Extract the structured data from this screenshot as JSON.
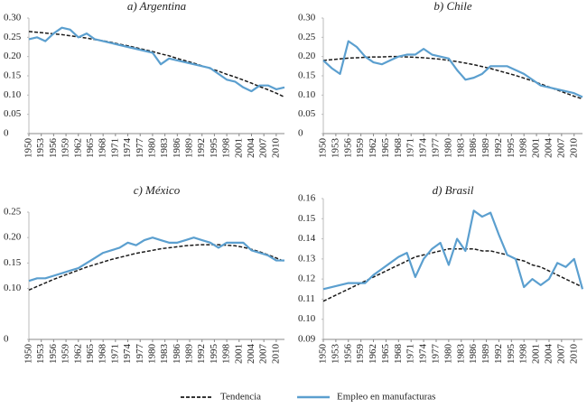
{
  "chart_data": [
    {
      "type": "line",
      "title": "a) Argentina",
      "x": [
        1950,
        1952,
        1954,
        1956,
        1958,
        1960,
        1962,
        1964,
        1966,
        1968,
        1970,
        1972,
        1974,
        1976,
        1978,
        1980,
        1982,
        1984,
        1986,
        1988,
        1990,
        1992,
        1994,
        1996,
        1998,
        2000,
        2002,
        2004,
        2006,
        2008,
        2010,
        2012
      ],
      "xlim": [
        1950,
        2012
      ],
      "xticks": [
        1950,
        1953,
        1956,
        1959,
        1962,
        1965,
        1968,
        1971,
        1974,
        1977,
        1980,
        1983,
        1986,
        1989,
        1992,
        1995,
        1998,
        2001,
        2004,
        2007,
        2010
      ],
      "ylim": [
        0,
        0.3
      ],
      "yticks": [
        0,
        0.05,
        {
          "value": 0.1,
          "label": "0.10"
        },
        0.15,
        {
          "value": 0.2,
          "label": "0.20"
        },
        0.25,
        {
          "value": 0.3,
          "label": "0.30"
        }
      ],
      "series": [
        {
          "name": "Tendencia",
          "color": "#1a1a1a",
          "dashed": true,
          "values": [
            0.265,
            0.263,
            0.261,
            0.259,
            0.257,
            0.254,
            0.251,
            0.248,
            0.244,
            0.241,
            0.237,
            0.232,
            0.228,
            0.223,
            0.218,
            0.213,
            0.207,
            0.202,
            0.195,
            0.189,
            0.183,
            0.176,
            0.169,
            0.162,
            0.154,
            0.147,
            0.139,
            0.131,
            0.122,
            0.114,
            0.105,
            0.095
          ]
        },
        {
          "name": "Empleo en manufacturas",
          "color": "#5b9fcf",
          "dashed": false,
          "values": [
            0.245,
            0.25,
            0.24,
            0.26,
            0.275,
            0.27,
            0.25,
            0.26,
            0.245,
            0.24,
            0.235,
            0.23,
            0.225,
            0.22,
            0.215,
            0.21,
            0.18,
            0.195,
            0.19,
            0.185,
            0.18,
            0.175,
            0.17,
            0.155,
            0.14,
            0.135,
            0.12,
            0.11,
            0.125,
            0.125,
            0.115,
            0.12
          ]
        }
      ]
    },
    {
      "type": "line",
      "title": "b) Chile",
      "x": [
        1950,
        1952,
        1954,
        1956,
        1958,
        1960,
        1962,
        1964,
        1966,
        1968,
        1970,
        1972,
        1974,
        1976,
        1978,
        1980,
        1982,
        1984,
        1986,
        1988,
        1990,
        1992,
        1994,
        1996,
        1998,
        2000,
        2002,
        2004,
        2006,
        2008,
        2010,
        2012
      ],
      "xlim": [
        1950,
        2012
      ],
      "xticks": [
        1950,
        1953,
        1956,
        1959,
        1962,
        1965,
        1968,
        1971,
        1974,
        1977,
        1980,
        1983,
        1986,
        1989,
        1992,
        1995,
        1998,
        2001,
        2004,
        2007,
        2010
      ],
      "ylim": [
        0,
        0.3
      ],
      "yticks": [
        0,
        0.05,
        {
          "value": 0.1,
          "label": "0.10"
        },
        0.15,
        {
          "value": 0.2,
          "label": "0.20"
        },
        0.25,
        {
          "value": 0.3,
          "label": "0.30"
        }
      ],
      "series": [
        {
          "color": "#1a1a1a",
          "dashed": true,
          "values": [
            0.19,
            0.192,
            0.194,
            0.196,
            0.197,
            0.198,
            0.199,
            0.199,
            0.2,
            0.2,
            0.199,
            0.198,
            0.197,
            0.195,
            0.193,
            0.19,
            0.187,
            0.183,
            0.179,
            0.174,
            0.169,
            0.163,
            0.157,
            0.151,
            0.144,
            0.137,
            0.129,
            0.121,
            0.113,
            0.105,
            0.097,
            0.09
          ]
        },
        {
          "color": "#5b9fcf",
          "dashed": false,
          "values": [
            0.19,
            0.17,
            0.155,
            0.24,
            0.225,
            0.2,
            0.185,
            0.18,
            0.19,
            0.2,
            0.205,
            0.205,
            0.22,
            0.205,
            0.2,
            0.195,
            0.165,
            0.14,
            0.145,
            0.155,
            0.175,
            0.175,
            0.175,
            0.165,
            0.155,
            0.14,
            0.125,
            0.12,
            0.115,
            0.11,
            0.105,
            0.095
          ]
        }
      ]
    },
    {
      "type": "line",
      "title": "c) México",
      "x": [
        1950,
        1952,
        1954,
        1956,
        1958,
        1960,
        1962,
        1964,
        1966,
        1968,
        1970,
        1972,
        1974,
        1976,
        1978,
        1980,
        1982,
        1984,
        1986,
        1988,
        1990,
        1992,
        1994,
        1996,
        1998,
        2000,
        2002,
        2004,
        2006,
        2008,
        2010,
        2012
      ],
      "xlim": [
        1950,
        2012
      ],
      "xticks": [
        1950,
        1953,
        1956,
        1959,
        1962,
        1965,
        1968,
        1971,
        1974,
        1977,
        1980,
        1983,
        1986,
        1989,
        1992,
        1995,
        1998,
        2001,
        2004,
        2007,
        2010
      ],
      "ylim": [
        0,
        0.25
      ],
      "yticks": [
        0,
        {
          "value": 0.1,
          "label": "0.10"
        },
        0.15,
        {
          "value": 0.2,
          "label": "0.20"
        },
        0.25
      ],
      "series": [
        {
          "color": "#1a1a1a",
          "dashed": true,
          "values": [
            0.097,
            0.104,
            0.111,
            0.118,
            0.124,
            0.13,
            0.136,
            0.142,
            0.147,
            0.152,
            0.157,
            0.161,
            0.165,
            0.169,
            0.172,
            0.175,
            0.178,
            0.18,
            0.182,
            0.184,
            0.185,
            0.186,
            0.186,
            0.186,
            0.185,
            0.184,
            0.181,
            0.177,
            0.172,
            0.166,
            0.16,
            0.153
          ]
        },
        {
          "color": "#5b9fcf",
          "dashed": false,
          "values": [
            0.115,
            0.12,
            0.12,
            0.125,
            0.13,
            0.135,
            0.14,
            0.15,
            0.16,
            0.17,
            0.175,
            0.18,
            0.19,
            0.185,
            0.195,
            0.2,
            0.195,
            0.19,
            0.19,
            0.195,
            0.2,
            0.195,
            0.19,
            0.18,
            0.19,
            0.19,
            0.19,
            0.175,
            0.17,
            0.165,
            0.155,
            0.155
          ]
        }
      ]
    },
    {
      "type": "line",
      "title": "d) Brasil",
      "x": [
        1950,
        1952,
        1954,
        1956,
        1958,
        1960,
        1962,
        1964,
        1966,
        1968,
        1970,
        1972,
        1974,
        1976,
        1978,
        1980,
        1982,
        1984,
        1986,
        1988,
        1990,
        1992,
        1994,
        1996,
        1998,
        2000,
        2002,
        2004,
        2006,
        2008,
        2010,
        2012
      ],
      "xlim": [
        1950,
        2012
      ],
      "xticks": [
        1950,
        1953,
        1956,
        1959,
        1962,
        1965,
        1968,
        1971,
        1974,
        1977,
        1980,
        1983,
        1986,
        1989,
        1992,
        1995,
        1998,
        2001,
        2004,
        2007,
        2010
      ],
      "ylim": [
        0.09,
        0.16
      ],
      "yticks": [
        0.09,
        {
          "value": 0.1,
          "label": "0.10"
        },
        0.11,
        0.12,
        0.13,
        0.14,
        0.15,
        0.16
      ],
      "series": [
        {
          "color": "#1a1a1a",
          "dashed": true,
          "values": [
            0.109,
            0.111,
            0.113,
            0.115,
            0.117,
            0.119,
            0.121,
            0.123,
            0.125,
            0.127,
            0.129,
            0.131,
            0.132,
            0.133,
            0.134,
            0.135,
            0.135,
            0.135,
            0.135,
            0.134,
            0.134,
            0.133,
            0.132,
            0.13,
            0.129,
            0.127,
            0.126,
            0.124,
            0.122,
            0.12,
            0.118,
            0.116
          ]
        },
        {
          "color": "#5b9fcf",
          "dashed": false,
          "values": [
            0.115,
            0.116,
            0.117,
            0.118,
            0.118,
            0.118,
            0.122,
            0.125,
            0.128,
            0.131,
            0.133,
            0.121,
            0.13,
            0.135,
            0.138,
            0.127,
            0.14,
            0.134,
            0.154,
            0.151,
            0.153,
            0.142,
            0.132,
            0.13,
            0.116,
            0.12,
            0.117,
            0.12,
            0.128,
            0.126,
            0.13,
            0.115
          ]
        }
      ]
    }
  ]
}
